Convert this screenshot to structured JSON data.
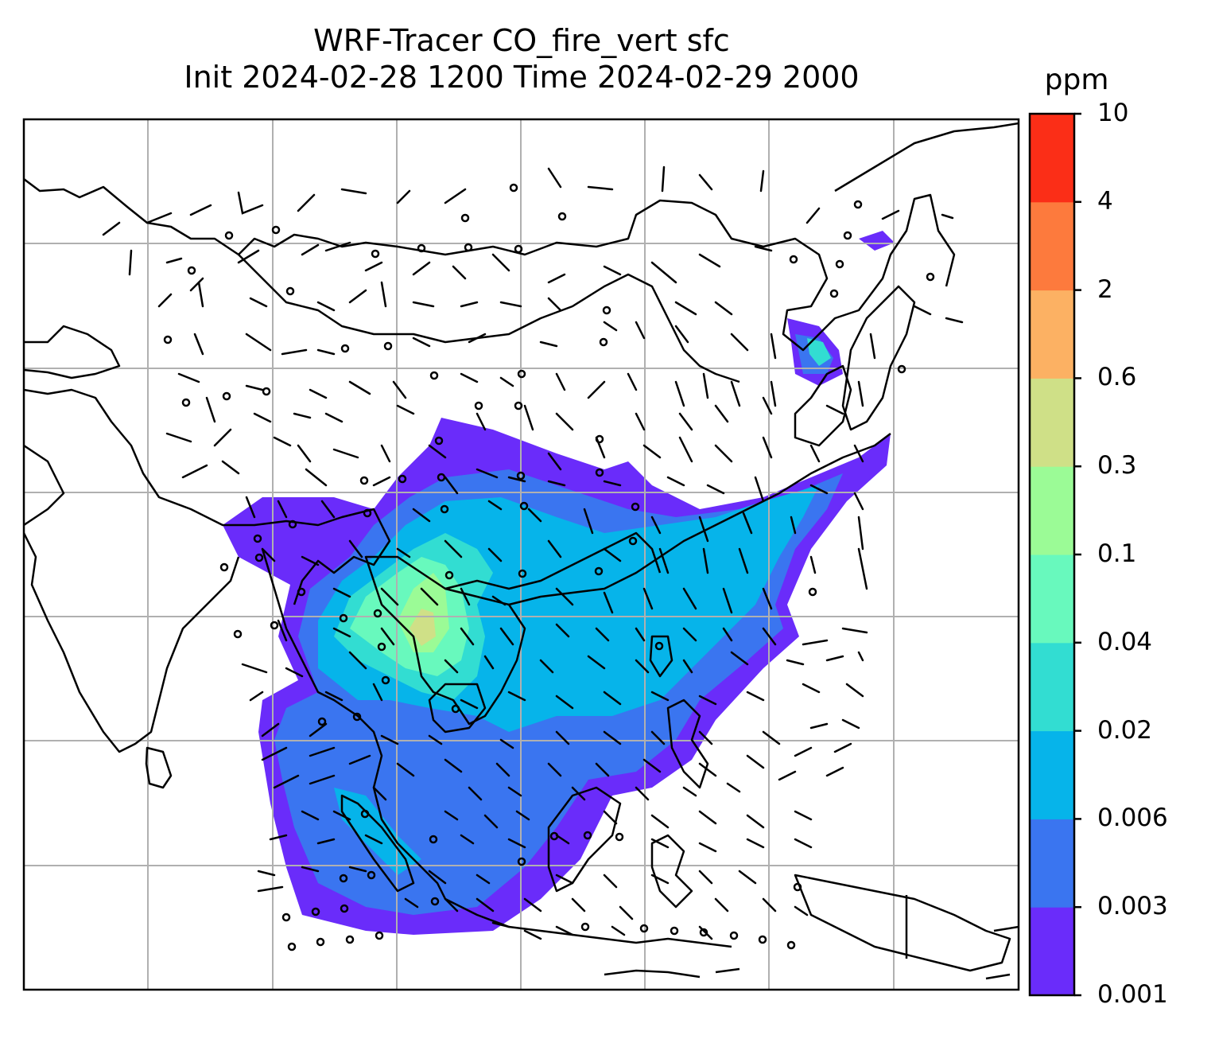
{
  "title": {
    "line1": "WRF-Tracer CO_fire_vert sfc",
    "line2": "Init 2024-02-28 1200 Time 2024-02-29 2000"
  },
  "colorbar": {
    "unit": "ppm",
    "levels": [
      "0.001",
      "0.003",
      "0.006",
      "0.02",
      "0.04",
      "0.1",
      "0.3",
      "0.6",
      "2",
      "4",
      "10"
    ],
    "colors": [
      "#6a2cfa",
      "#3a75f0",
      "#06b4ea",
      "#32ddd2",
      "#68f9bd",
      "#9bfb96",
      "#cfe087",
      "#fcb163",
      "#fd7a3d",
      "#fb2e17"
    ]
  },
  "map": {
    "gridlines": true,
    "coastline_color": "#000000",
    "grid_color": "#b0b0b0",
    "wind_barb_color": "#000000"
  }
}
